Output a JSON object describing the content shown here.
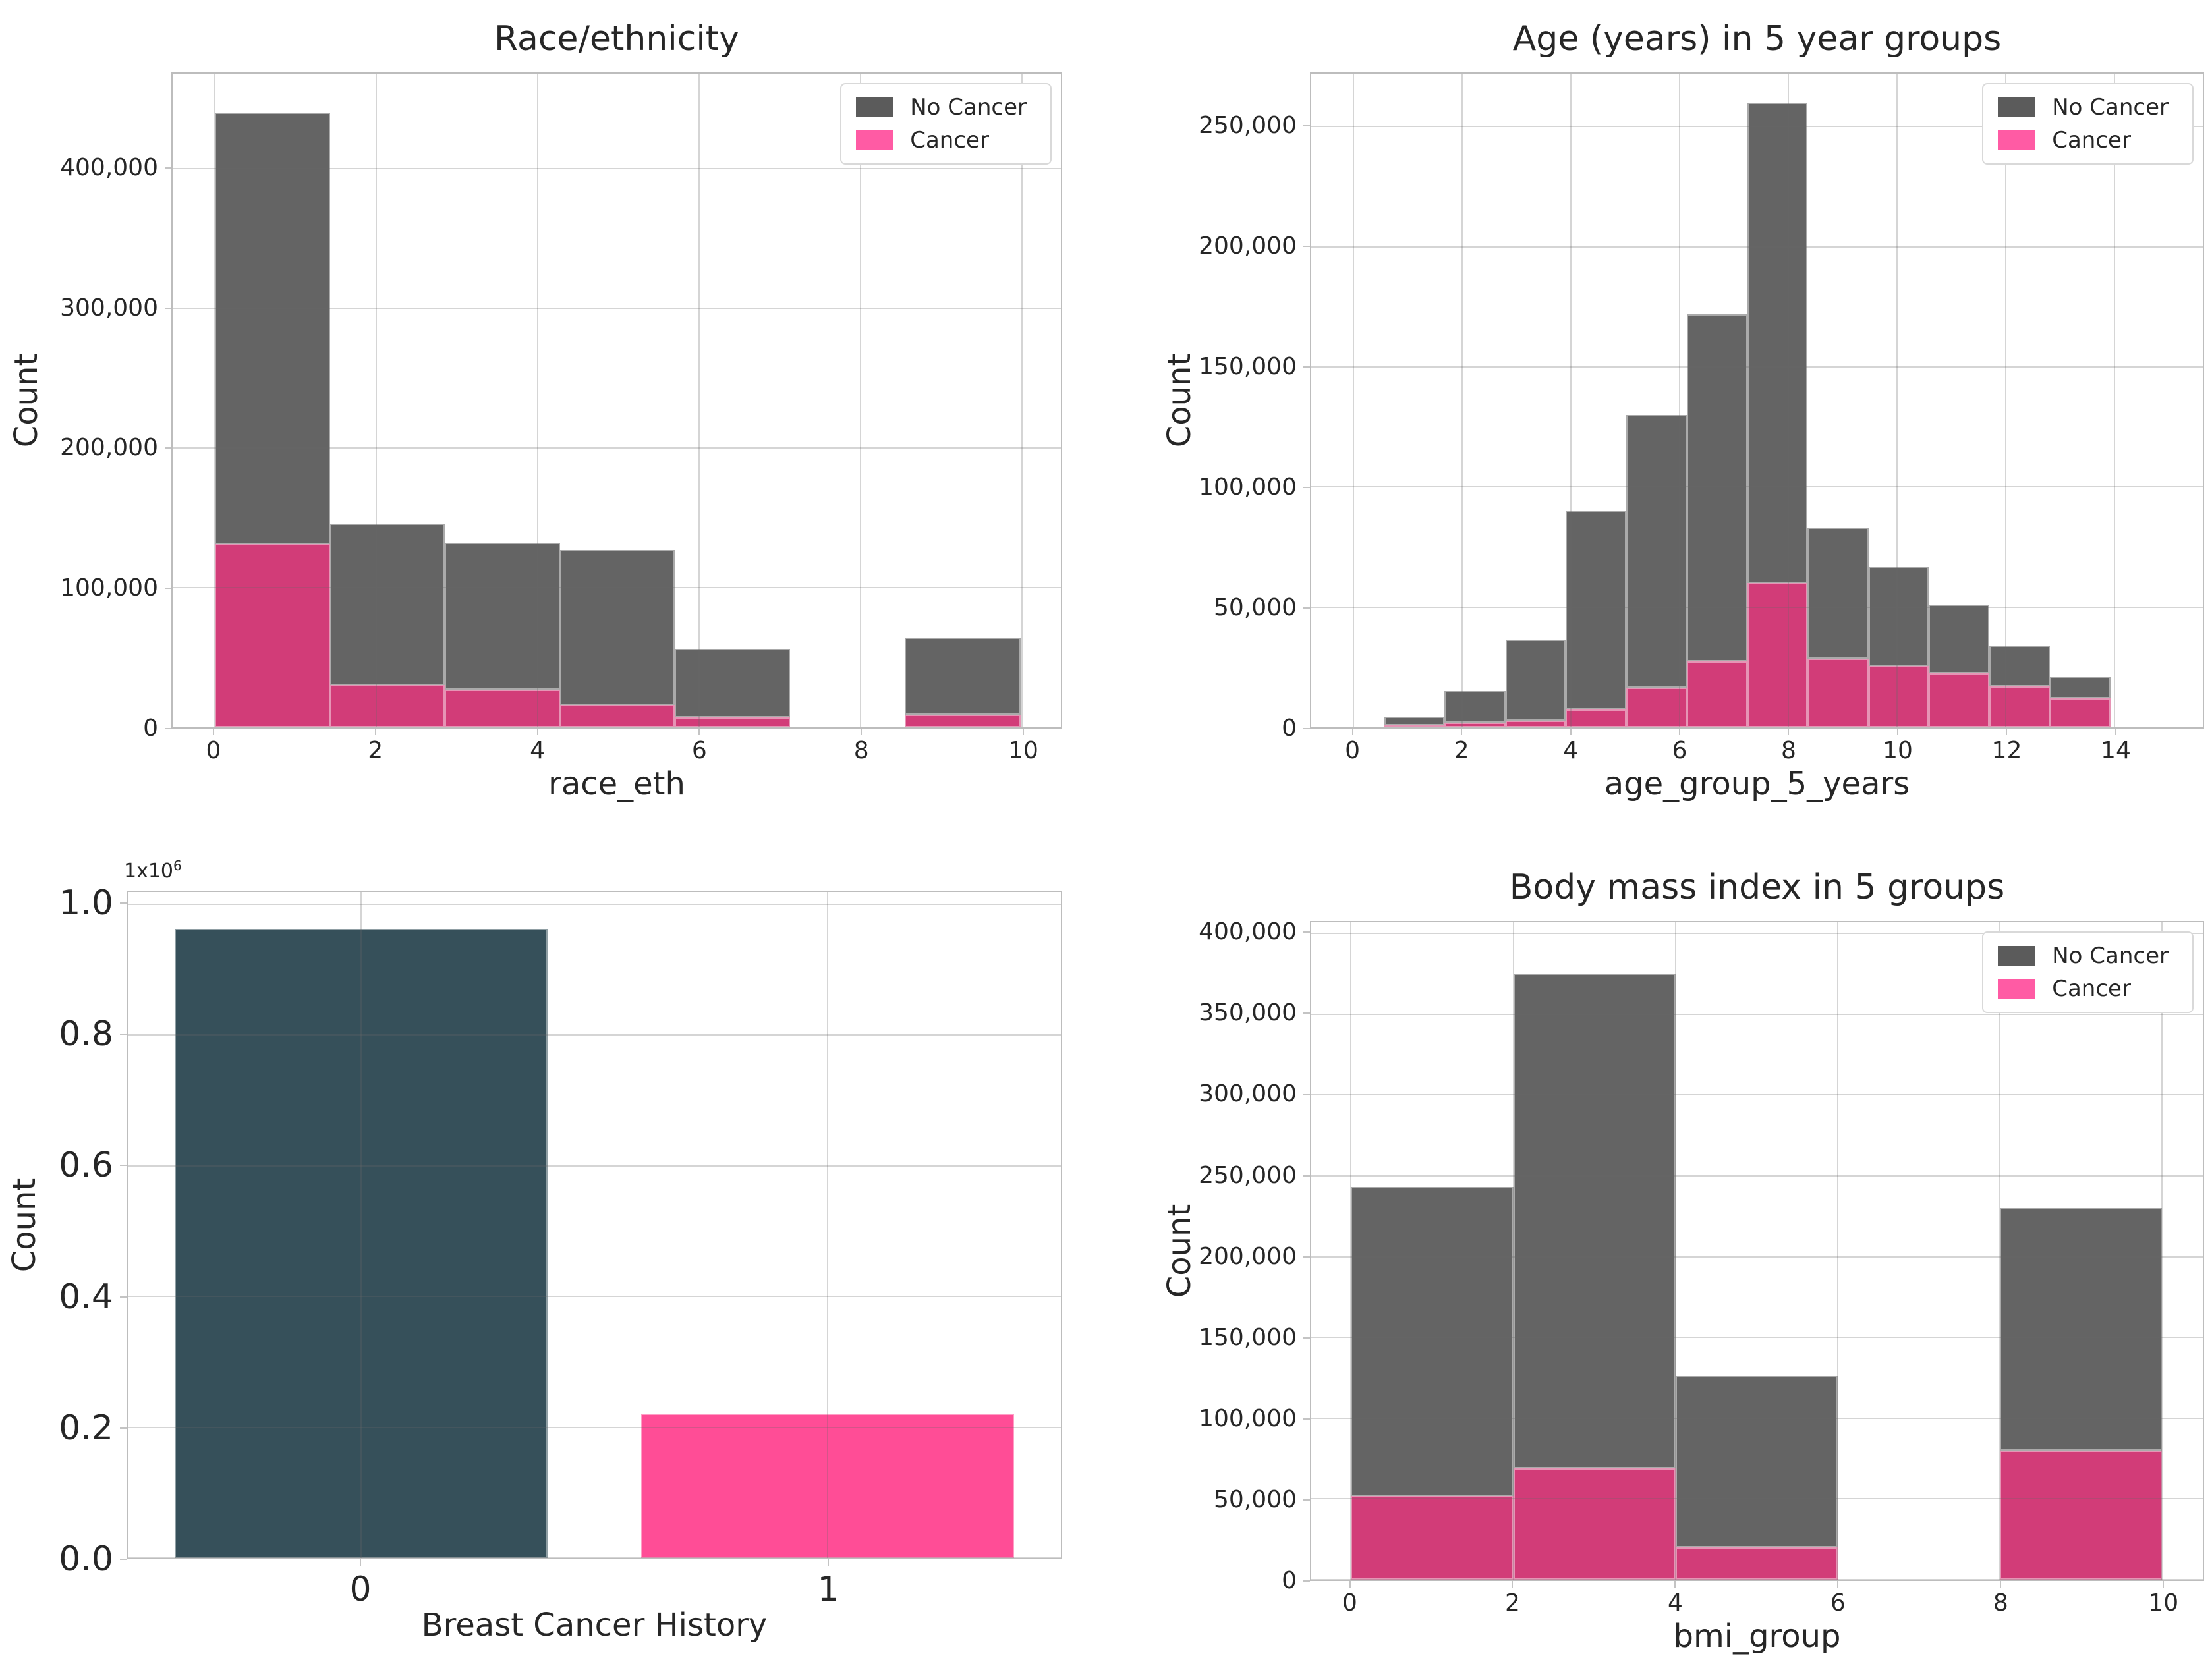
{
  "legend": {
    "items": [
      {
        "id": "no-cancer",
        "label": "No Cancer",
        "color": "#5b5b5b"
      },
      {
        "id": "cancer",
        "label": "Cancer",
        "color": "#ff5ba4"
      }
    ]
  },
  "colors": {
    "no_cancer_bar": "#646464",
    "cancer_bar": "#d23c78",
    "history_0_bar": "#36505a",
    "history_1_bar": "#ff4d96",
    "grid": "rgba(105,105,105,0.28)",
    "spine": "#bdbdbd",
    "text": "#262626",
    "background": "#ffffff"
  },
  "chart_data": [
    {
      "id": "race_eth",
      "type": "histogram-stacked",
      "title": "Race/ethnicity",
      "xlabel": "race_eth",
      "ylabel": "Count",
      "legend": true,
      "legend_position": "upper right",
      "grid": true,
      "xlim": [
        -0.52,
        10.48
      ],
      "ylim": [
        0,
        468000
      ],
      "xticks": [
        {
          "v": 0,
          "label": "0"
        },
        {
          "v": 2,
          "label": "2"
        },
        {
          "v": 4,
          "label": "4"
        },
        {
          "v": 6,
          "label": "6"
        },
        {
          "v": 8,
          "label": "8"
        },
        {
          "v": 10,
          "label": "10"
        }
      ],
      "yticks": [
        {
          "v": 0,
          "label": "0"
        },
        {
          "v": 100000,
          "label": "100,000"
        },
        {
          "v": 200000,
          "label": "200,000"
        },
        {
          "v": 300000,
          "label": "300,000"
        },
        {
          "v": 400000,
          "label": "400,000"
        }
      ],
      "series": [
        "No Cancer",
        "Cancer"
      ],
      "bins": [
        {
          "x0": 0.0,
          "x1": 1.43,
          "no_cancer": 309000,
          "cancer": 131000,
          "total": 440000
        },
        {
          "x0": 1.43,
          "x1": 2.85,
          "no_cancer": 116000,
          "cancer": 30000,
          "total": 146000
        },
        {
          "x0": 2.85,
          "x1": 4.28,
          "no_cancer": 105000,
          "cancer": 27000,
          "total": 132000
        },
        {
          "x0": 4.28,
          "x1": 5.7,
          "no_cancer": 111000,
          "cancer": 16000,
          "total": 127000
        },
        {
          "x0": 5.7,
          "x1": 7.13,
          "no_cancer": 49000,
          "cancer": 7000,
          "total": 56000
        },
        {
          "x0": 7.13,
          "x1": 8.55,
          "no_cancer": 0,
          "cancer": 0,
          "total": 0
        },
        {
          "x0": 8.55,
          "x1": 9.98,
          "no_cancer": 55000,
          "cancer": 9000,
          "total": 64000
        }
      ]
    },
    {
      "id": "age_group_5_years",
      "type": "histogram-stacked",
      "title": "Age (years) in 5 year groups",
      "xlabel": "age_group_5_years",
      "ylabel": "Count",
      "legend": true,
      "legend_position": "upper right",
      "grid": true,
      "xlim": [
        -0.78,
        15.62
      ],
      "ylim": [
        0,
        272000
      ],
      "xticks": [
        {
          "v": 0,
          "label": "0"
        },
        {
          "v": 2,
          "label": "2"
        },
        {
          "v": 4,
          "label": "4"
        },
        {
          "v": 6,
          "label": "6"
        },
        {
          "v": 8,
          "label": "8"
        },
        {
          "v": 10,
          "label": "10"
        },
        {
          "v": 12,
          "label": "12"
        },
        {
          "v": 14,
          "label": "14"
        }
      ],
      "yticks": [
        {
          "v": 0,
          "label": "0"
        },
        {
          "v": 50000,
          "label": "50,000"
        },
        {
          "v": 100000,
          "label": "100,000"
        },
        {
          "v": 150000,
          "label": "150,000"
        },
        {
          "v": 200000,
          "label": "200,000"
        },
        {
          "v": 250000,
          "label": "250,000"
        }
      ],
      "series": [
        "No Cancer",
        "Cancer"
      ],
      "bins": [
        {
          "x0": 0.56,
          "x1": 1.67,
          "no_cancer": 3800,
          "cancer": 700,
          "total": 4500
        },
        {
          "x0": 1.67,
          "x1": 2.79,
          "no_cancer": 13200,
          "cancer": 1800,
          "total": 15000
        },
        {
          "x0": 2.79,
          "x1": 3.9,
          "no_cancer": 33700,
          "cancer": 2800,
          "total": 36500
        },
        {
          "x0": 3.9,
          "x1": 5.01,
          "no_cancer": 82500,
          "cancer": 7500,
          "total": 90000
        },
        {
          "x0": 5.01,
          "x1": 6.13,
          "no_cancer": 113500,
          "cancer": 16500,
          "total": 130000
        },
        {
          "x0": 6.13,
          "x1": 7.24,
          "no_cancer": 144500,
          "cancer": 27500,
          "total": 172000
        },
        {
          "x0": 7.24,
          "x1": 8.35,
          "no_cancer": 200000,
          "cancer": 60000,
          "total": 260000
        },
        {
          "x0": 8.35,
          "x1": 9.47,
          "no_cancer": 54500,
          "cancer": 28500,
          "total": 83000
        },
        {
          "x0": 9.47,
          "x1": 10.58,
          "no_cancer": 41500,
          "cancer": 25500,
          "total": 67000
        },
        {
          "x0": 10.58,
          "x1": 11.69,
          "no_cancer": 28500,
          "cancer": 22500,
          "total": 51000
        },
        {
          "x0": 11.69,
          "x1": 12.81,
          "no_cancer": 17000,
          "cancer": 17000,
          "total": 34000
        },
        {
          "x0": 12.81,
          "x1": 13.92,
          "no_cancer": 9000,
          "cancer": 12000,
          "total": 21000
        }
      ]
    },
    {
      "id": "breast_cancer_history",
      "type": "bar",
      "title": "",
      "xlabel": "Breast Cancer History",
      "ylabel": "Count",
      "legend": false,
      "grid": true,
      "offset_text": {
        "base": "1x10",
        "exponent": "6"
      },
      "xlim": [
        -0.5,
        1.5
      ],
      "ylim": [
        0,
        1019000
      ],
      "bar_width": 0.8,
      "xticks": [
        {
          "v": 0,
          "label": "0"
        },
        {
          "v": 1,
          "label": "1"
        }
      ],
      "yticks": [
        {
          "v": 0,
          "label": "0.0"
        },
        {
          "v": 200000,
          "label": "0.2"
        },
        {
          "v": 400000,
          "label": "0.4"
        },
        {
          "v": 600000,
          "label": "0.6"
        },
        {
          "v": 800000,
          "label": "0.8"
        },
        {
          "v": 1000000,
          "label": "1.0"
        }
      ],
      "categories": [
        {
          "label": "0",
          "value": 963000,
          "color": "#36505a"
        },
        {
          "label": "1",
          "value": 221000,
          "color": "#ff4d96"
        }
      ]
    },
    {
      "id": "bmi_group",
      "type": "histogram-stacked",
      "title": "Body mass index in 5 groups",
      "xlabel": "bmi_group",
      "ylabel": "Count",
      "legend": true,
      "legend_position": "upper right",
      "grid": true,
      "xlim": [
        -0.49,
        10.5
      ],
      "ylim": [
        0,
        407000
      ],
      "xticks": [
        {
          "v": 0,
          "label": "0"
        },
        {
          "v": 2,
          "label": "2"
        },
        {
          "v": 4,
          "label": "4"
        },
        {
          "v": 6,
          "label": "6"
        },
        {
          "v": 8,
          "label": "8"
        },
        {
          "v": 10,
          "label": "10"
        }
      ],
      "yticks": [
        {
          "v": 0,
          "label": "0"
        },
        {
          "v": 50000,
          "label": "50,000"
        },
        {
          "v": 100000,
          "label": "100,000"
        },
        {
          "v": 150000,
          "label": "150,000"
        },
        {
          "v": 200000,
          "label": "200,000"
        },
        {
          "v": 250000,
          "label": "250,000"
        },
        {
          "v": 300000,
          "label": "300,000"
        },
        {
          "v": 350000,
          "label": "350,000"
        },
        {
          "v": 400000,
          "label": "400,000"
        }
      ],
      "series": [
        "No Cancer",
        "Cancer"
      ],
      "bins": [
        {
          "x0": 0,
          "x1": 2,
          "no_cancer": 191000,
          "cancer": 52000,
          "total": 243000
        },
        {
          "x0": 2,
          "x1": 4,
          "no_cancer": 306000,
          "cancer": 69000,
          "total": 375000
        },
        {
          "x0": 4,
          "x1": 6,
          "no_cancer": 106000,
          "cancer": 20000,
          "total": 126000
        },
        {
          "x0": 6,
          "x1": 8,
          "no_cancer": 0,
          "cancer": 0,
          "total": 0
        },
        {
          "x0": 8,
          "x1": 10,
          "no_cancer": 150000,
          "cancer": 80000,
          "total": 230000
        }
      ]
    }
  ]
}
